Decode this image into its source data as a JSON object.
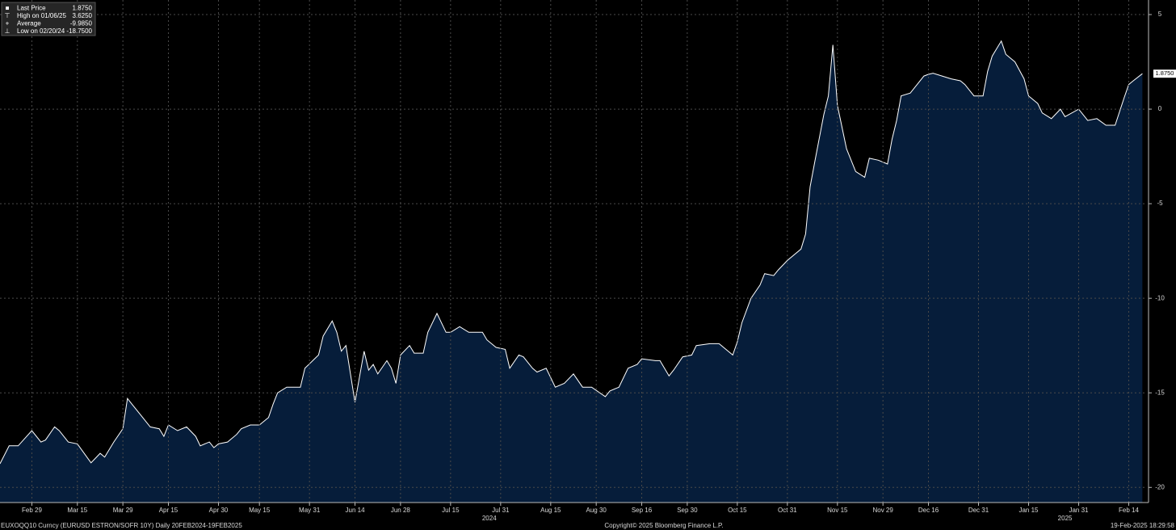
{
  "chart_data": {
    "type": "area",
    "stats": {
      "labels": [
        "Last Price",
        "High on 01/06/25",
        "Average",
        "Low on 02/20/24"
      ],
      "values": [
        1.875,
        3.625,
        -9.985,
        -18.75
      ],
      "value_labels": [
        "1.8750",
        "3.6250",
        "-9.9850",
        "-18.7500"
      ]
    },
    "x": [
      0,
      2,
      4,
      7,
      9,
      10,
      12,
      13,
      15,
      17,
      20,
      22,
      23,
      25,
      27,
      28,
      29,
      31,
      33,
      35,
      36,
      37,
      39,
      41,
      43,
      44,
      46,
      47,
      48,
      50,
      52,
      53,
      55,
      57,
      59,
      60,
      61,
      63,
      66,
      67,
      70,
      71,
      73,
      74,
      75,
      76,
      78,
      80,
      81,
      82,
      83,
      85,
      86,
      87,
      88,
      90,
      91,
      93,
      94,
      96,
      98,
      99,
      101,
      103,
      106,
      107,
      109,
      111,
      112,
      114,
      115,
      117,
      118,
      120,
      122,
      124,
      126,
      128,
      130,
      133,
      134,
      136,
      138,
      140,
      141,
      144,
      145,
      147,
      148,
      150,
      152,
      153,
      156,
      158,
      160,
      161,
      162,
      163,
      165,
      167,
      168,
      170,
      171,
      173,
      176,
      177,
      178,
      179,
      181,
      182,
      183,
      184,
      186,
      188,
      190,
      191,
      193,
      195,
      196,
      197,
      198,
      200,
      201,
      203,
      204,
      205,
      207,
      209,
      211,
      212,
      214,
      216,
      217,
      218,
      220,
      221,
      223,
      225,
      226,
      228,
      229,
      231,
      233,
      234,
      237,
      238,
      239,
      241,
      243,
      245,
      247,
      248,
      249,
      251
    ],
    "values": [
      -18.75,
      -17.8,
      -17.8,
      -17.0,
      -17.6,
      -17.5,
      -16.8,
      -17.0,
      -17.6,
      -17.7,
      -18.7,
      -18.2,
      -18.4,
      -17.6,
      -16.9,
      -15.3,
      -15.6,
      -16.2,
      -16.8,
      -16.9,
      -17.3,
      -16.7,
      -17.0,
      -16.8,
      -17.3,
      -17.8,
      -17.6,
      -17.9,
      -17.7,
      -17.6,
      -17.2,
      -16.9,
      -16.7,
      -16.7,
      -16.3,
      -15.6,
      -15.0,
      -14.7,
      -14.7,
      -13.7,
      -13.0,
      -12.0,
      -11.2,
      -11.8,
      -12.8,
      -12.5,
      -15.5,
      -12.8,
      -13.8,
      -13.5,
      -14.0,
      -13.3,
      -13.7,
      -14.5,
      -13.0,
      -12.5,
      -12.9,
      -12.9,
      -11.8,
      -10.8,
      -11.8,
      -11.8,
      -11.5,
      -11.8,
      -11.8,
      -12.2,
      -12.6,
      -12.7,
      -13.7,
      -13.0,
      -13.1,
      -13.7,
      -13.9,
      -13.7,
      -14.7,
      -14.5,
      -14.0,
      -14.7,
      -14.7,
      -15.2,
      -14.9,
      -14.7,
      -13.7,
      -13.5,
      -13.2,
      -13.3,
      -13.3,
      -14.1,
      -13.8,
      -13.1,
      -13.0,
      -12.5,
      -12.4,
      -12.4,
      -12.8,
      -13.0,
      -12.3,
      -11.3,
      -10.0,
      -9.3,
      -8.7,
      -8.8,
      -8.5,
      -8.0,
      -7.4,
      -6.6,
      -4.1,
      -2.8,
      -0.3,
      0.7,
      3.4,
      0.2,
      -2.1,
      -3.3,
      -3.6,
      -2.6,
      -2.7,
      -2.9,
      -1.6,
      -0.6,
      0.7,
      0.85,
      1.15,
      1.75,
      1.84,
      1.9,
      1.75,
      1.6,
      1.5,
      1.3,
      0.7,
      0.7,
      2.0,
      2.8,
      3.6,
      2.9,
      2.5,
      1.6,
      0.7,
      0.3,
      -0.2,
      -0.5,
      0.0,
      -0.4,
      0.0,
      -0.3,
      -0.6,
      -0.5,
      -0.85,
      -0.85,
      0.6,
      1.3,
      1.5,
      1.875
    ],
    "color": "#ffffff",
    "fill": "#061d3a",
    "xlim": [
      0,
      252
    ],
    "ylim": [
      -20.8,
      5.77
    ],
    "yticks": [
      5,
      0,
      -5,
      -10,
      -15,
      -20
    ],
    "xticks": [
      {
        "value": 7,
        "label": "Feb 29"
      },
      {
        "value": 17,
        "label": "Mar 15"
      },
      {
        "value": 27,
        "label": "Mar 29"
      },
      {
        "value": 37,
        "label": "Apr 15"
      },
      {
        "value": 48,
        "label": "Apr 30"
      },
      {
        "value": 57,
        "label": "May 15"
      },
      {
        "value": 68,
        "label": "May 31"
      },
      {
        "value": 78,
        "label": "Jun 14"
      },
      {
        "value": 88,
        "label": "Jun 28"
      },
      {
        "value": 99,
        "label": "Jul 15"
      },
      {
        "value": 110,
        "label": "Jul 31"
      },
      {
        "value": 121,
        "label": "Aug 15"
      },
      {
        "value": 131,
        "label": "Aug 30"
      },
      {
        "value": 141,
        "label": "Sep 16"
      },
      {
        "value": 151,
        "label": "Sep 30"
      },
      {
        "value": 162,
        "label": "Oct 15"
      },
      {
        "value": 173,
        "label": "Oct 31"
      },
      {
        "value": 184,
        "label": "Nov 15"
      },
      {
        "value": 194,
        "label": "Nov 29"
      },
      {
        "value": 204,
        "label": "Dec 16"
      },
      {
        "value": 215,
        "label": "Dec 31"
      },
      {
        "value": 226,
        "label": "Jan 15"
      },
      {
        "value": 237,
        "label": "Jan 31"
      },
      {
        "value": 248,
        "label": "Feb 14"
      }
    ],
    "year_ticks": [
      {
        "value": 107.5,
        "label": "2024"
      },
      {
        "value": 234,
        "label": "2025"
      }
    ],
    "grid": true,
    "footer": {
      "left": "EUXOQQ10 Curncy (EURUSD ESTRON/SOFR 10Y)  Daily 20FEB2024-19FEB2025",
      "center": "Copyright© 2025 Bloomberg Finance L.P.",
      "right": "19-Feb-2025 18:29:58"
    }
  }
}
